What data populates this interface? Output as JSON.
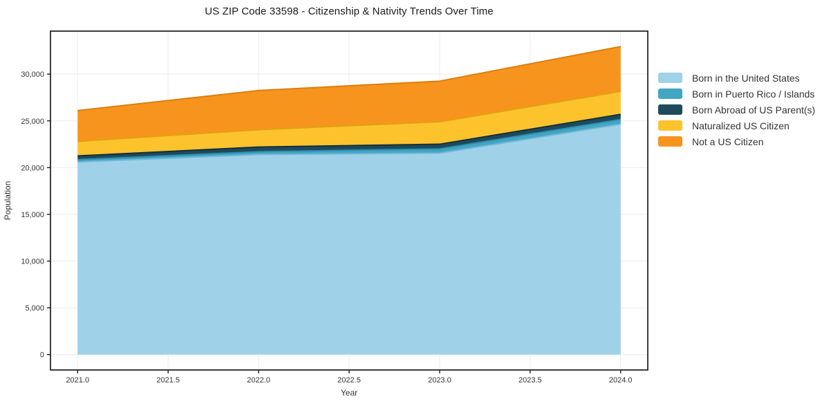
{
  "figure": {
    "background": "#ffffff",
    "frame_color": "#1a1a1a",
    "grid_color": "#ebebeb",
    "tick_label_color": "#333333",
    "title_color": "#1a1a1a"
  },
  "chart_data": {
    "type": "area",
    "stacked": true,
    "title": "US ZIP Code 33598 - Citizenship & Nativity Trends Over Time",
    "xlabel": "Year",
    "ylabel": "Population",
    "x": [
      2021,
      2022,
      2023,
      2024
    ],
    "xlim": [
      2020.85,
      2024.15
    ],
    "ylim": [
      -1650,
      34600
    ],
    "grid": true,
    "legend_position": "right-outside",
    "xticks": {
      "values": [
        2021.0,
        2021.5,
        2022.0,
        2022.5,
        2023.0,
        2023.5,
        2024.0
      ],
      "labels": [
        "2021.0",
        "2021.5",
        "2022.0",
        "2022.5",
        "2023.0",
        "2023.5",
        "2024.0"
      ]
    },
    "yticks": {
      "values": [
        0,
        5000,
        10000,
        15000,
        20000,
        25000,
        30000
      ],
      "labels": [
        "0",
        "5,000",
        "10,000",
        "15,000",
        "20,000",
        "25,000",
        "30,000"
      ]
    },
    "series": [
      {
        "name": "Born in the United States",
        "color": "#9FD2E8",
        "edge_color": "#74B6D6",
        "values": [
          20600,
          21400,
          21550,
          24650
        ]
      },
      {
        "name": "Born in Puerto Rico / Islands",
        "color": "#41A6C4",
        "edge_color": "#2E90B0",
        "values": [
          250,
          300,
          450,
          500
        ]
      },
      {
        "name": "Born Abroad of US Parent(s)",
        "color": "#1F4A5C",
        "edge_color": "#122F3F",
        "values": [
          400,
          500,
          500,
          550
        ]
      },
      {
        "name": "Naturalized US Citizen",
        "color": "#FCC32D",
        "edge_color": "#E2A20F",
        "values": [
          1550,
          1850,
          2400,
          2450
        ]
      },
      {
        "name": "Not a US Citizen",
        "color": "#F7941E",
        "edge_color": "#DD7E0C",
        "values": [
          3300,
          4200,
          4350,
          4800
        ]
      }
    ],
    "totals": [
      26100,
      28250,
      29250,
      32950
    ]
  }
}
